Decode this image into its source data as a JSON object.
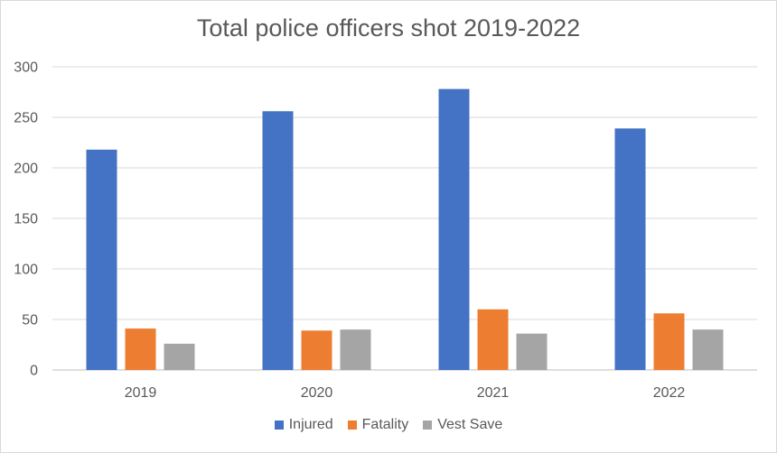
{
  "chart_data": {
    "type": "bar",
    "title": "Total police officers shot 2019-2022",
    "xlabel": "",
    "ylabel": "",
    "categories": [
      "2019",
      "2020",
      "2021",
      "2022"
    ],
    "series": [
      {
        "name": "Injured",
        "color": "#4472c4",
        "values": [
          218,
          256,
          278,
          239
        ]
      },
      {
        "name": "Fatality",
        "color": "#ed7d31",
        "values": [
          41,
          39,
          60,
          56
        ]
      },
      {
        "name": "Vest Save",
        "color": "#a5a5a5",
        "values": [
          26,
          40,
          36,
          40
        ]
      }
    ],
    "ylim": [
      0,
      300
    ],
    "yticks": [
      "0",
      "50",
      "100",
      "150",
      "200",
      "250",
      "300"
    ],
    "grid": true,
    "legend_position": "bottom"
  }
}
